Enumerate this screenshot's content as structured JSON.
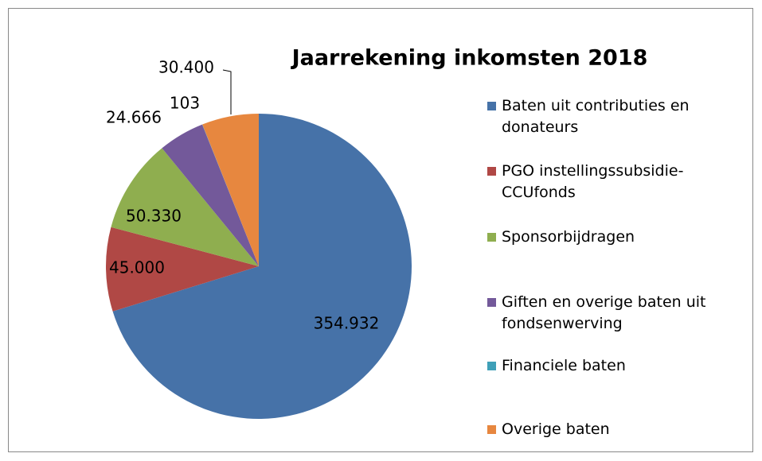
{
  "chart_data": {
    "type": "pie",
    "title": "Jaarrekening inkomsten 2018",
    "categories": [
      "Baten uit contributies en donateurs",
      "PGO instellingssubsidie-CCUfonds",
      "Sponsorbijdragen",
      "Giften en overige baten uit fondsenwerving",
      "Financiele baten",
      "Overige baten"
    ],
    "values": [
      354932,
      45000,
      50330,
      24666,
      103,
      30400
    ],
    "value_labels": [
      "354.932",
      "45.000",
      "50.330",
      "24.666",
      "103",
      "30.400"
    ],
    "colors": [
      "#4672a8",
      "#b04845",
      "#8fae4f",
      "#73599a",
      "#3fa0b8",
      "#e7873f"
    ],
    "legend": "right"
  }
}
